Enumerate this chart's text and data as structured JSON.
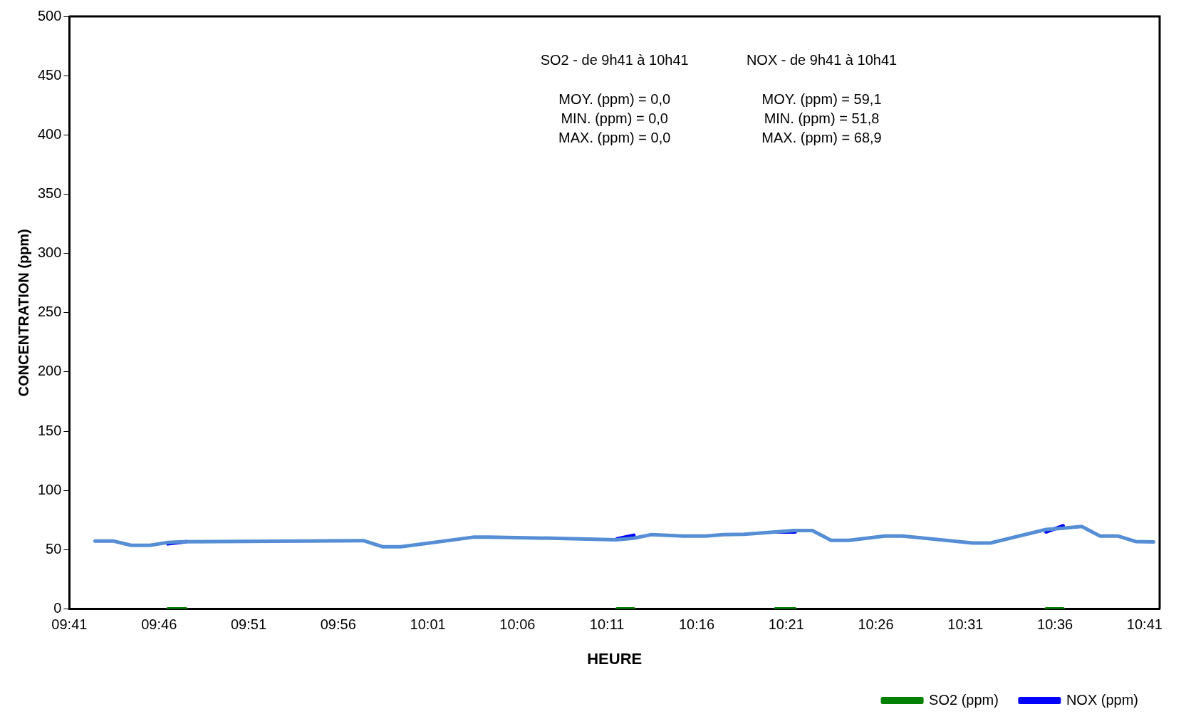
{
  "chart_data": {
    "type": "line",
    "xlabel": "HEURE",
    "ylabel": "CONCENTRATION (ppm)",
    "annotations": [
      "SO2 - de 9h41 à 10h41",
      "MOY. (ppm) = 0,0",
      "MIN. (ppm) = 0,0",
      "MAX. (ppm) = 0,0",
      "NOX - de 9h41 à 10h41",
      "MOY. (ppm) = 59,1",
      "MIN. (ppm) = 51,8",
      "MAX. (ppm) = 68,9"
    ],
    "xlim": [
      9.6833,
      10.6973
    ],
    "xticks": [
      {
        "value": 9.6833,
        "label": "09:41"
      },
      {
        "value": 9.7667,
        "label": "09:46"
      },
      {
        "value": 9.85,
        "label": "09:51"
      },
      {
        "value": 9.9333,
        "label": "09:56"
      },
      {
        "value": 10.0167,
        "label": "10:01"
      },
      {
        "value": 10.1,
        "label": "10:06"
      },
      {
        "value": 10.1833,
        "label": "10:11"
      },
      {
        "value": 10.2667,
        "label": "10:16"
      },
      {
        "value": 10.35,
        "label": "10:21"
      },
      {
        "value": 10.4333,
        "label": "10:26"
      },
      {
        "value": 10.5167,
        "label": "10:31"
      },
      {
        "value": 10.6,
        "label": "10:36"
      },
      {
        "value": 10.6833,
        "label": "10:41"
      }
    ],
    "ylim": [
      0,
      500
    ],
    "yticks": [
      0,
      50,
      100,
      150,
      200,
      250,
      300,
      350,
      400,
      450,
      500
    ],
    "grid": false,
    "legend": "bottom right",
    "line_style": "solid",
    "marker": "none",
    "series": [
      {
        "name": "SO2 (ppm)",
        "color": "#008000",
        "x": [
          9.775,
          9.7917,
          9.9,
          10.1927,
          10.2083,
          10.28,
          10.34,
          10.3583,
          10.45,
          10.5917,
          10.6075
        ],
        "values": [
          0,
          0,
          null,
          0,
          0,
          null,
          0,
          0,
          null,
          0,
          0
        ]
      },
      {
        "name": "NOX (ppm)",
        "color": "#0000ff",
        "x": [
          9.775,
          9.7917,
          9.9,
          10.1927,
          10.2083,
          10.28,
          10.34,
          10.3583,
          10.45,
          10.5917,
          10.6075
        ],
        "values": [
          55,
          56.8,
          null,
          59.1,
          62.2,
          null,
          65,
          65,
          null,
          65,
          70.2
        ]
      },
      {
        "color": "#558ed5",
        "x": [
          9.7072,
          9.724,
          9.7408,
          9.7583,
          9.775,
          9.7917,
          9.9567,
          9.975,
          9.9917,
          10.06,
          10.0733,
          10.1583,
          10.1917,
          10.2083,
          10.225,
          10.2543,
          10.275,
          10.2917,
          10.3108,
          10.34,
          10.3572,
          10.3743,
          10.3917,
          10.4083,
          10.4417,
          10.4583,
          10.5233,
          10.54,
          10.5917,
          10.6075,
          10.625,
          10.6417,
          10.6583,
          10.675,
          10.6917
        ],
        "values": [
          57.4,
          57.4,
          53.7,
          53.7,
          56.2,
          56.8,
          57.7,
          52.5,
          52.5,
          60.7,
          60.7,
          59.2,
          58.4,
          59.7,
          62.8,
          61.6,
          61.6,
          62.8,
          63.1,
          65,
          66.2,
          66.2,
          57.9,
          57.9,
          61.6,
          61.6,
          55.7,
          55.7,
          67.1,
          68.1,
          69.6,
          61.6,
          61.6,
          56.9,
          56.6
        ]
      }
    ]
  }
}
